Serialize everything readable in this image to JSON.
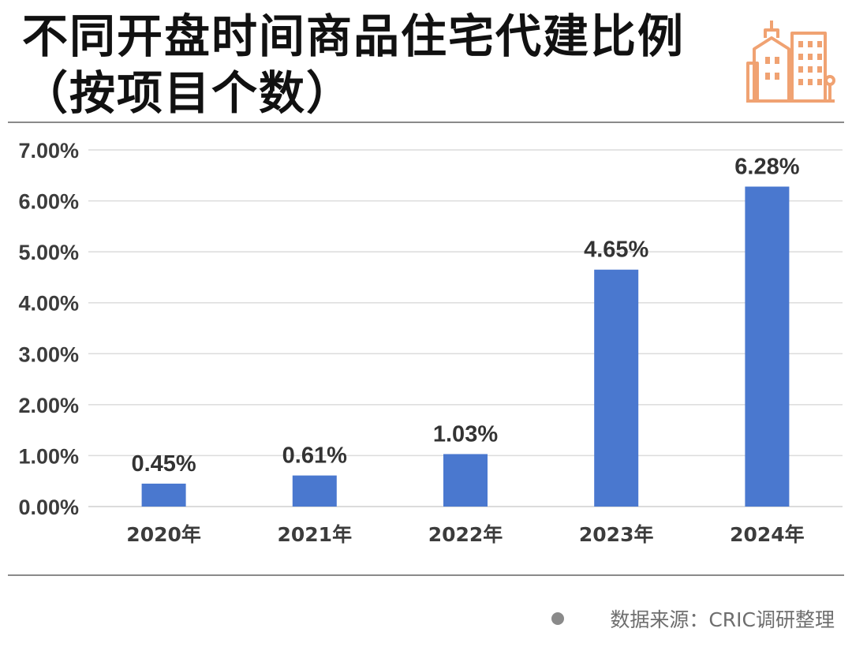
{
  "header": {
    "title_line1": "不同开盘时间商品住宅代建比例",
    "title_line2": "（按项目个数）"
  },
  "footer": {
    "source": "数据来源：CRIC调研整理"
  },
  "colors": {
    "bar": "#4a78cf",
    "grid": "#dcdcdc",
    "logo": "#f0a272"
  },
  "icons": {
    "logo": "city-buildings-icon"
  },
  "chart_data": {
    "type": "bar",
    "categories": [
      "2020年",
      "2021年",
      "2022年",
      "2023年",
      "2024年"
    ],
    "values": [
      0.45,
      0.61,
      1.03,
      4.65,
      6.28
    ],
    "value_labels": [
      "0.45%",
      "0.61%",
      "1.03%",
      "4.65%",
      "6.28%"
    ],
    "yticks": [
      "0.00%",
      "1.00%",
      "2.00%",
      "3.00%",
      "4.00%",
      "5.00%",
      "6.00%",
      "7.00%"
    ],
    "ylim": [
      0,
      7
    ],
    "title": "不同开盘时间商品住宅代建比例（按项目个数）",
    "xlabel": "",
    "ylabel": "",
    "grid": true,
    "legend": "none"
  }
}
